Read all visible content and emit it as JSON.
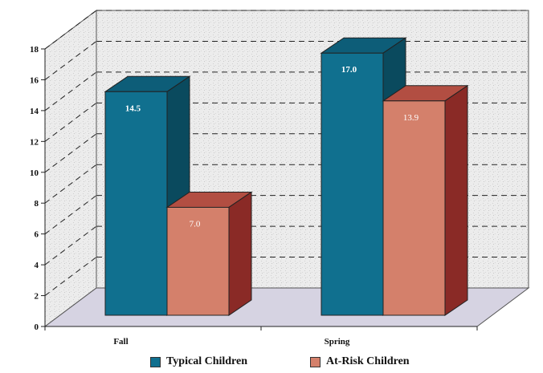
{
  "chart_data": {
    "type": "bar",
    "categories": [
      "Fall",
      "Spring"
    ],
    "series": [
      {
        "name": "Typical Children",
        "values": [
          14.5,
          17.0
        ],
        "labels": [
          "14.5",
          "17.0"
        ],
        "color": "#10708f"
      },
      {
        "name": "At-Risk Children",
        "values": [
          7.0,
          13.9
        ],
        "labels": [
          "7.0",
          "13.9"
        ],
        "color": "#d4806b"
      }
    ],
    "yticks": [
      "0",
      "2",
      "4",
      "6",
      "8",
      "10",
      "12",
      "14",
      "16",
      "18"
    ],
    "ylim": [
      0,
      18
    ],
    "grid": true,
    "style": "3d",
    "legend_position": "bottom"
  }
}
